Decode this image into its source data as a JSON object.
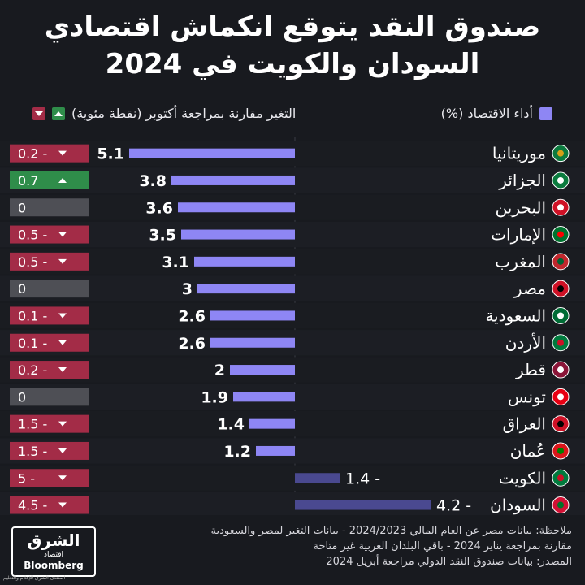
{
  "title_lines": [
    "صندوق النقد يتوقع انكماش اقتصادي",
    "السودان والكويت في 2024"
  ],
  "legend": {
    "performance": "أداء الاقتصاد (%)",
    "change": "التغير مقارنة بمراجعة أكتوبر (نقطة مئوية)"
  },
  "colors": {
    "bar": "#8e86f4",
    "bar_negative": "#4a4990",
    "change_negative": "#a32c47",
    "change_positive": "#2f8d4a",
    "change_zero": "#4e4f55",
    "background": "#181a1f"
  },
  "chart_data": {
    "type": "bar",
    "orientation": "horizontal",
    "categories": [
      "موريتانيا",
      "الجزائر",
      "البحرين",
      "الإمارات",
      "المغرب",
      "مصر",
      "السعودية",
      "الأردن",
      "قطر",
      "تونس",
      "العراق",
      "عُمان",
      "الكويت",
      "السودان"
    ],
    "series": [
      {
        "name": "أداء الاقتصاد (%)",
        "values": [
          5.1,
          3.8,
          3.6,
          3.5,
          3.1,
          3,
          2.6,
          2.6,
          2,
          1.9,
          1.4,
          1.2,
          -1.4,
          -4.2
        ],
        "labels": [
          "5.1",
          "3.8",
          "3.6",
          "3.5",
          "3.1",
          "3",
          "2.6",
          "2.6",
          "2",
          "1.9",
          "1.4",
          "1.2",
          "1.4 -",
          "4.2 -"
        ]
      },
      {
        "name": "التغير مقارنة بمراجعة أكتوبر (نقطة مئوية)",
        "values": [
          -0.2,
          0.7,
          0,
          -0.5,
          -0.5,
          0,
          -0.1,
          -0.1,
          -0.2,
          0,
          -1.5,
          -1.5,
          -5,
          -4.5
        ],
        "labels": [
          "0.2 -",
          "0.7",
          "0",
          "0.5 -",
          "0.5 -",
          "0",
          "0.1 -",
          "0.1 -",
          "0.2 -",
          "0",
          "1.5 -",
          "1.5 -",
          "5 -",
          "4.5 -"
        ]
      }
    ],
    "flags": [
      "mauritania",
      "algeria",
      "bahrain",
      "uae",
      "morocco",
      "egypt",
      "saudi-arabia",
      "jordan",
      "qatar",
      "tunisia",
      "iraq",
      "oman",
      "kuwait",
      "sudan"
    ]
  },
  "notes": [
    "ملاحظة: بيانات مصر عن العام المالي 2024/2023 - بيانات التغير لمصر والسعودية",
    "مقارنة بمراجعة يناير 2024 - باقي البلدان العربية غير متاحة",
    "المصدر: بيانات صندوق النقد الدولي مراجعة أبريل 2024"
  ],
  "logo": {
    "arabic": "الشرق",
    "arabic_sub": "اقتصاد",
    "english": "Bloomberg",
    "footer": "المنتدى الشرق للإعلام والتعليم"
  }
}
